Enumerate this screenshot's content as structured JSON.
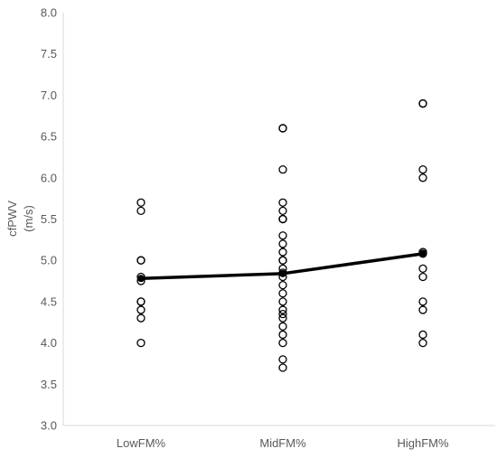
{
  "chart_data": {
    "type": "scatter",
    "title": "",
    "xlabel": "",
    "ylabel": "cfPWV (m/s)",
    "ylabel_lines": [
      "cfPWV",
      "(m/s)"
    ],
    "categories": [
      "LowFM%",
      "MidFM%",
      "HighFM%"
    ],
    "ylim": [
      3.0,
      8.0
    ],
    "yticks": [
      "3.0",
      "3.5",
      "4.0",
      "4.5",
      "5.0",
      "5.5",
      "6.0",
      "6.5",
      "7.0",
      "7.5",
      "8.0"
    ],
    "grid": false,
    "legend": "none",
    "points": [
      {
        "category": "LowFM%",
        "values": [
          5.7,
          5.6,
          5.0,
          5.0,
          4.8,
          4.75,
          4.5,
          4.5,
          4.4,
          4.3,
          4.0
        ]
      },
      {
        "category": "MidFM%",
        "values": [
          6.6,
          6.6,
          6.1,
          5.7,
          5.6,
          5.5,
          5.5,
          5.5,
          5.3,
          5.2,
          5.1,
          5.0,
          5.0,
          4.9,
          4.85,
          4.8,
          4.7,
          4.6,
          4.5,
          4.4,
          4.35,
          4.3,
          4.2,
          4.1,
          4.0,
          3.8,
          3.7
        ]
      },
      {
        "category": "HighFM%",
        "values": [
          6.9,
          6.9,
          6.1,
          6.0,
          5.1,
          5.08,
          4.9,
          4.8,
          4.5,
          4.4,
          4.1,
          4.0
        ]
      }
    ],
    "mean_line": {
      "values": [
        4.78,
        4.84,
        5.08
      ]
    },
    "colors": {
      "axis": "#d9d9d9",
      "text": "#595959",
      "marker": "#000000",
      "line": "#000000"
    }
  }
}
